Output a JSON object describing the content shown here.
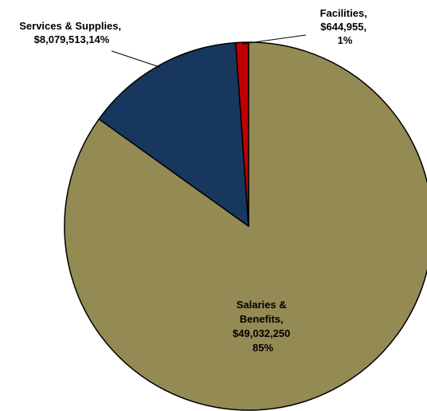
{
  "chart_data": {
    "type": "pie",
    "start_angle_deg": 0,
    "direction": "clockwise",
    "slices": [
      {
        "name": "Salaries & Benefits",
        "value": 49032250,
        "percent": 85,
        "color": "#948A54",
        "label_lines": [
          "Salaries &",
          "Benefits,",
          "$49,032,250",
          "85%"
        ]
      },
      {
        "name": "Services & Supplies",
        "value": 8079513,
        "percent": 14,
        "color": "#17375E",
        "label_lines": [
          "Services & Supplies,",
          "$8,079,513,14%"
        ]
      },
      {
        "name": "Facilities",
        "value": 644955,
        "percent": 1,
        "color": "#C00000",
        "label_lines": [
          "Facilities,",
          "$644,955,",
          "1%"
        ]
      }
    ],
    "legend": "none"
  }
}
